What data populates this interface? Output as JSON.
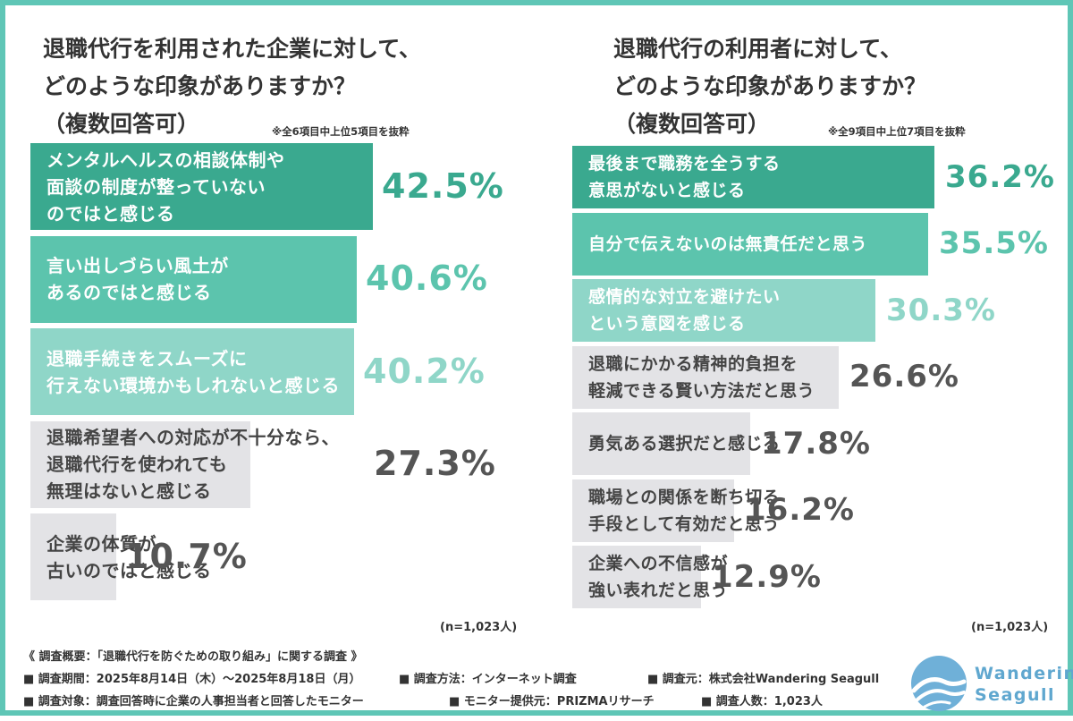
{
  "left": {
    "title_lines": [
      "退職代行を利用された企業に対して、",
      "どのような印象がありますか？",
      "（複数回答可）"
    ],
    "note": "※全6項目中上位5項目を抜粋",
    "n_label": "(n=1,023人)"
  },
  "right": {
    "title_lines": [
      "退職代行の利用者に対して、",
      "どのような印象がありますか？",
      "（複数回答可）"
    ],
    "note": "※全9項目中上位7項目を抜粋",
    "n_label": "(n=1,023人)"
  },
  "chart_data": [
    {
      "type": "bar",
      "orientation": "horizontal",
      "title": "退職代行を利用された企業に対して、どのような印象がありますか？（複数回答可）",
      "categories": [
        "メンタルヘルスの相談体制や\n面談の制度が整っていない\nのではと感じる",
        "言い出しづらい風土が\nあるのではと感じる",
        "退職手続きをスムーズに\n行えない環境かもしれないと感じる",
        "退職希望者への対応が不十分なら、\n退職代行を使われても\n無理はないと感じる",
        "企業の体質が\n古いのではと感じる"
      ],
      "values": [
        42.5,
        40.6,
        40.2,
        27.3,
        10.7
      ],
      "value_labels": [
        "42.5%",
        "40.6%",
        "40.2%",
        "27.3%",
        "10.7%"
      ],
      "bar_colors": [
        "#3aa98f",
        "#5cc4ad",
        "#8fd6c8",
        "#e3e3e6",
        "#e3e3e6"
      ],
      "label_colors": [
        "#ffffff",
        "#ffffff",
        "#ffffff",
        "#444444",
        "#444444"
      ],
      "value_colors": [
        "#3aa98f",
        "#5cc4ad",
        "#8fd6c8",
        "#555555",
        "#555555"
      ]
    },
    {
      "type": "bar",
      "orientation": "horizontal",
      "title": "退職代行の利用者に対して、どのような印象がありますか？（複数回答可）",
      "categories": [
        "最後まで職務を全うする\n意思がないと感じる",
        "自分で伝えないのは無責任だと思う",
        "感情的な対立を避けたい\nという意図を感じる",
        "退職にかかる精神的負担を\n軽減できる賢い方法だと思う",
        "勇気ある選択だと感じる",
        "職場との関係を断ち切る\n手段として有効だと思う",
        "企業への不信感が\n強い表れだと思う"
      ],
      "values": [
        36.2,
        35.5,
        30.3,
        26.6,
        17.8,
        16.2,
        12.9
      ],
      "value_labels": [
        "36.2%",
        "35.5%",
        "30.3%",
        "26.6%",
        "17.8%",
        "16.2%",
        "12.9%"
      ],
      "bar_colors": [
        "#3aa98f",
        "#5cc4ad",
        "#8fd6c8",
        "#e3e3e6",
        "#e3e3e6",
        "#e3e3e6",
        "#e3e3e6"
      ],
      "label_colors": [
        "#ffffff",
        "#ffffff",
        "#ffffff",
        "#444444",
        "#444444",
        "#444444",
        "#444444"
      ],
      "value_colors": [
        "#3aa98f",
        "#5cc4ad",
        "#8fd6c8",
        "#555555",
        "#555555",
        "#555555",
        "#555555"
      ]
    }
  ],
  "footer": {
    "summary": "《 調査概要：「退職代行を防ぐための取り組み」に関する調査 》",
    "period": "■ 調査期間：2025年8月14日（木）〜2025年8月18日（月）",
    "method": "■ 調査方法：インターネット調査",
    "source": "■ 調査元：株式会社Wandering Seagull",
    "target": "■ 調査対象：調査回答時に企業の人事担当者と回答したモニター",
    "provider": "■ モニター提供元：PRIZMAリサーチ",
    "count": "■ 調査人数：1,023人"
  },
  "logo": {
    "line1": "Wandering",
    "line2": "Seagull",
    "color": "#5fa7cf"
  },
  "colors": {
    "frame": "#5fc6b6"
  }
}
